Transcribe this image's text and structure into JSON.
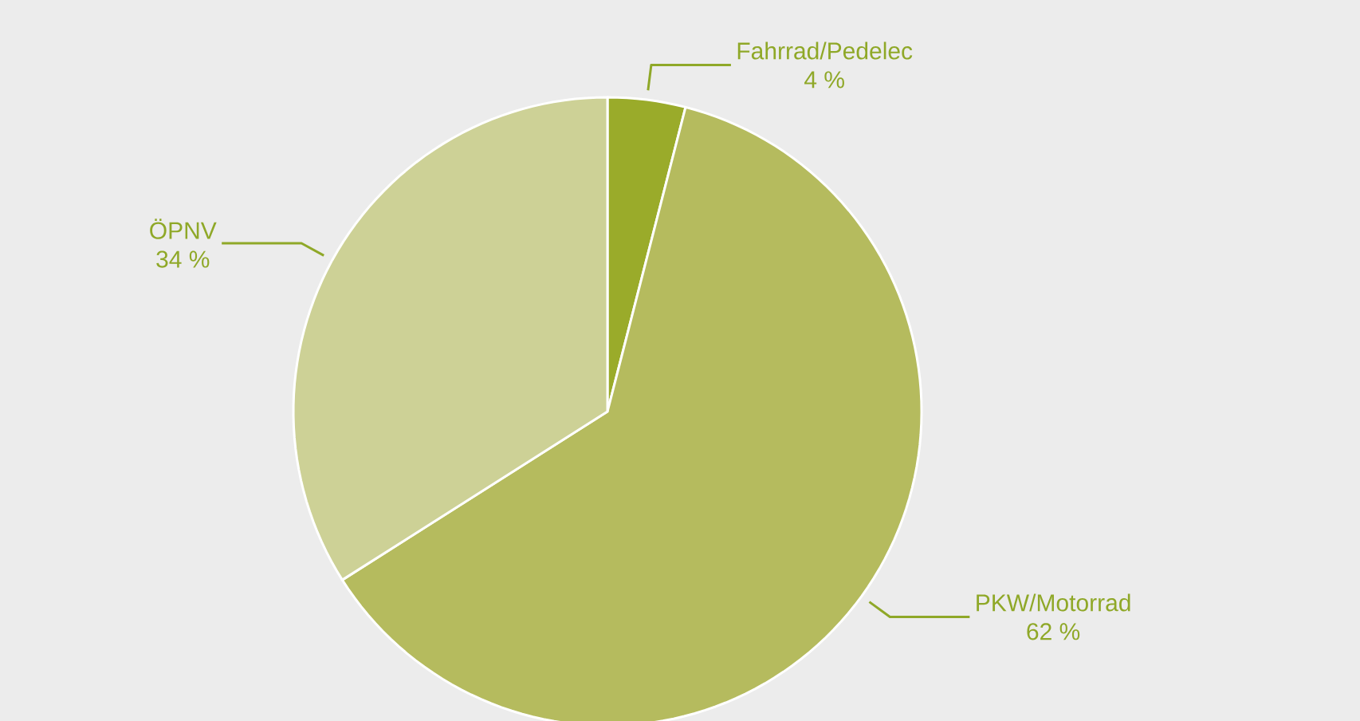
{
  "chart_data": {
    "type": "pie",
    "categories": [
      "Fahrrad/Pedelec",
      "PKW/Motorrad",
      "ÖPNV"
    ],
    "values": [
      4,
      62,
      34
    ],
    "colors": [
      "#9aab2a",
      "#b5bb5e",
      "#cdd196"
    ],
    "value_labels": [
      "4 %",
      "62 %",
      "34 %"
    ]
  }
}
